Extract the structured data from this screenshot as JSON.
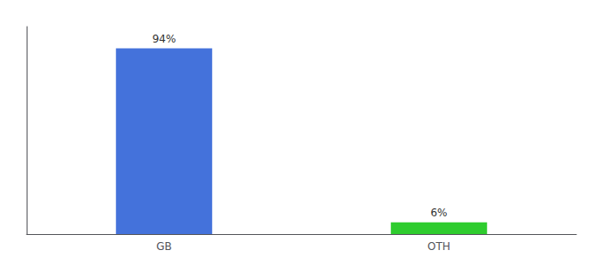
{
  "chart_data": {
    "type": "bar",
    "categories": [
      "GB",
      "OTH"
    ],
    "values": [
      94,
      6
    ],
    "value_labels": [
      "94%",
      "6%"
    ],
    "colors": [
      "#4472db",
      "#2ecc2e"
    ],
    "ylim": [
      0,
      105
    ],
    "grid": false,
    "data_labels": true,
    "tick_labels": "x"
  }
}
